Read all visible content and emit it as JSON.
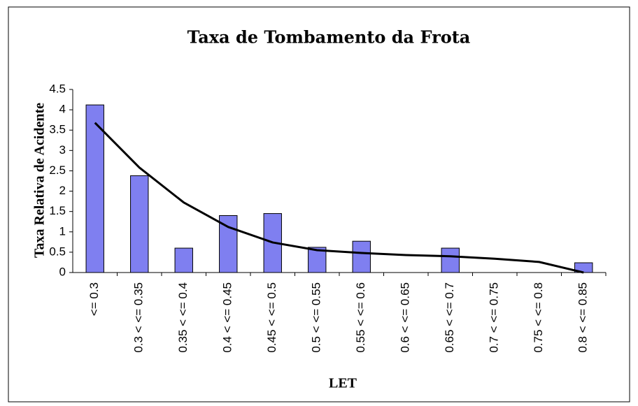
{
  "chart_data": {
    "type": "bar",
    "title": "Taxa de Tombamento da Frota",
    "x_label": "LET",
    "y_label": "Taxa Relativa de Acidente",
    "categories": [
      "<= 0.3",
      "0.3 < <= 0.35",
      "0.35 < <= 0.4",
      "0.4 < <= 0.45",
      "0.45 < <= 0.5",
      "0.5 < <= 0.55",
      "0.55 < <= 0.6",
      "0.6 < <= 0.65",
      "0.65 < <= 0.7",
      "0.7 < <= 0.75",
      "0.75 < <= 0.8",
      "0.8 < <= 0.85"
    ],
    "series": [
      {
        "type": "bar",
        "color": "#7f7ff0",
        "values": [
          4.12,
          2.38,
          0.6,
          1.4,
          1.45,
          0.62,
          0.77,
          0,
          0.6,
          0,
          0,
          0.24
        ]
      },
      {
        "type": "line",
        "color": "#000000",
        "values": [
          3.68,
          2.58,
          1.72,
          1.12,
          0.74,
          0.55,
          0.48,
          0.43,
          0.4,
          0.34,
          0.26,
          0
        ]
      }
    ],
    "ylim": [
      0,
      4.5
    ],
    "yticks": [
      0,
      0.5,
      1,
      1.5,
      2,
      2.5,
      3,
      3.5,
      4,
      4.5
    ],
    "grid": false
  }
}
